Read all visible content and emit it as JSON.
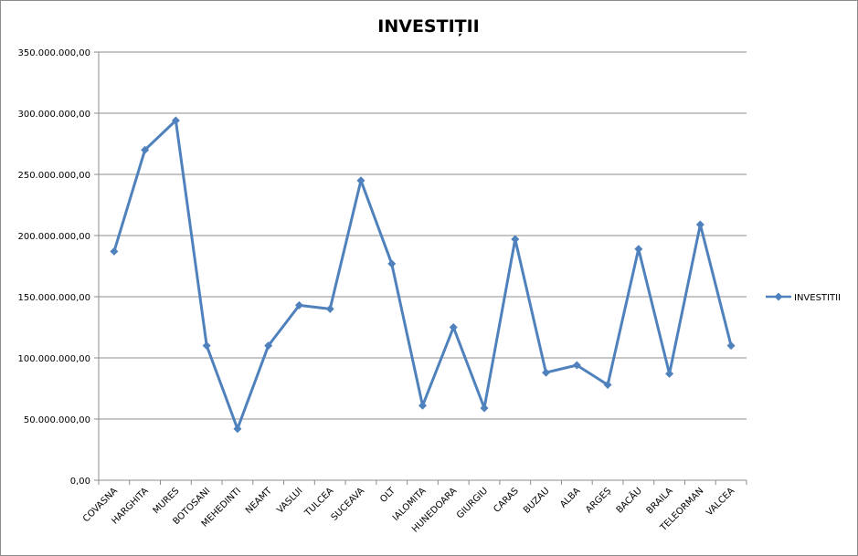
{
  "chart_data": {
    "type": "line",
    "title": "INVESTIȚII",
    "xlabel": "",
    "ylabel": "",
    "categories": [
      "COVASNA",
      "HARGHITA",
      "MURES",
      "BOTOSANI",
      "MEHEDINTI",
      "NEAMT",
      "VASLUI",
      "TULCEA",
      "SUCEAVA",
      "OLT",
      "IALOMITA",
      "HUNEDOARA",
      "GIURGIU",
      "CARAS",
      "BUZAU",
      "ALBA",
      "ARGEȘ",
      "BACĂU",
      "BRAILA",
      "TELEORMAN",
      "VALCEA"
    ],
    "series": [
      {
        "name": "INVESTITII",
        "color": "#4f81bd",
        "marker": "diamond",
        "values": [
          187000000,
          270000000,
          294000000,
          110000000,
          42000000,
          110000000,
          143000000,
          140000000,
          245000000,
          177000000,
          61000000,
          125000000,
          59000000,
          197000000,
          88000000,
          94000000,
          78000000,
          189000000,
          87000000,
          209000000,
          110000000
        ]
      }
    ],
    "ylim": [
      0,
      350000000
    ],
    "yticks": [
      0,
      50000000,
      100000000,
      150000000,
      200000000,
      250000000,
      300000000,
      350000000
    ],
    "ytick_labels": [
      "0,00",
      "50.000.000,00",
      "100.000.000,00",
      "150.000.000,00",
      "200.000.000,00",
      "250.000.000,00",
      "300.000.000,00",
      "350.000.000,00"
    ],
    "grid": true,
    "legend_position": "right",
    "colors": {
      "series": "#4f81bd",
      "grid": "#8c8c8c",
      "axis": "#8c8c8c",
      "text": "#000000"
    }
  }
}
